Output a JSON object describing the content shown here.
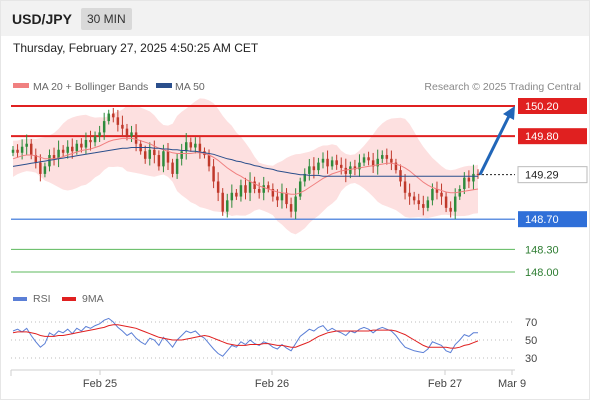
{
  "header": {
    "pair": "USD/JPY",
    "timeframe": "30 MIN",
    "datetime": "Thursday, February 27, 2025 4:50:25 AM CET"
  },
  "colors": {
    "bull_candle": "#2e8b3c",
    "bear_candle": "#c0392b",
    "bollinger_fill": "#fde0e0",
    "ma20": "#f08080",
    "ma50": "#2b4f8c",
    "resistance": "#e02020",
    "support": "#2f6fd8",
    "target": "#5cb85c",
    "arrow": "#2166b8",
    "rsi": "#5b7fd6",
    "rsi_ma": "#e02020"
  },
  "chart_data": [
    {
      "type": "candlestick",
      "title": "USD/JPY",
      "legend": [
        {
          "name": "MA 20 + Bollinger Bands",
          "color": "#f08080"
        },
        {
          "name": "MA 50",
          "color": "#2b4f8c"
        }
      ],
      "credit": "Research © 2025 Trading Central",
      "x_ticks": [
        "Feb 25",
        "Feb 26",
        "Feb 27",
        "Mar 9"
      ],
      "levels": [
        {
          "label": "150.20",
          "value": 150.2,
          "kind": "resistance"
        },
        {
          "label": "149.80",
          "value": 149.8,
          "kind": "resistance"
        },
        {
          "label": "149.29",
          "value": 149.29,
          "kind": "current"
        },
        {
          "label": "148.70",
          "value": 148.7,
          "kind": "support"
        },
        {
          "label": "148.30",
          "value": 148.3,
          "kind": "target"
        },
        {
          "label": "148.00",
          "value": 148.0,
          "kind": "target"
        }
      ],
      "ylim": [
        147.85,
        150.35
      ],
      "forecast_arrow": {
        "from": 149.29,
        "to": 150.2
      },
      "close": [
        149.62,
        149.58,
        149.66,
        149.7,
        149.55,
        149.45,
        149.3,
        149.4,
        149.55,
        149.5,
        149.62,
        149.58,
        149.66,
        149.6,
        149.7,
        149.65,
        149.75,
        149.72,
        149.8,
        149.85,
        150.0,
        150.1,
        150.05,
        149.95,
        149.9,
        149.8,
        149.85,
        149.7,
        149.6,
        149.5,
        149.62,
        149.55,
        149.4,
        149.6,
        149.45,
        149.3,
        149.5,
        149.6,
        149.72,
        149.65,
        149.7,
        149.6,
        149.55,
        149.4,
        149.2,
        149.05,
        148.8,
        148.95,
        149.05,
        149.0,
        149.15,
        149.05,
        149.2,
        149.1,
        149.05,
        149.15,
        149.1,
        149.0,
        148.95,
        149.05,
        148.9,
        148.8,
        149.0,
        149.2,
        149.3,
        149.4,
        149.35,
        149.45,
        149.5,
        149.4,
        149.48,
        149.42,
        149.38,
        149.3,
        149.4,
        149.36,
        149.45,
        149.52,
        149.48,
        149.4,
        149.5,
        149.55,
        149.5,
        149.45,
        149.35,
        149.2,
        149.05,
        149.0,
        148.95,
        148.9,
        148.85,
        148.95,
        149.1,
        149.05,
        149.0,
        148.85,
        148.8,
        149.0,
        149.1,
        149.25,
        149.2,
        149.3,
        149.29
      ],
      "ma20": [
        149.5,
        149.52,
        149.54,
        149.55,
        149.55,
        149.54,
        149.52,
        149.5,
        149.5,
        149.5,
        149.51,
        149.53,
        149.55,
        149.57,
        149.59,
        149.61,
        149.62,
        149.63,
        149.65,
        149.67,
        149.7,
        149.73,
        149.75,
        149.76,
        149.77,
        149.77,
        149.77,
        149.76,
        149.74,
        149.72,
        149.7,
        149.67,
        149.64,
        149.62,
        149.6,
        149.58,
        149.57,
        149.57,
        149.57,
        149.57,
        149.58,
        149.58,
        149.57,
        149.55,
        149.52,
        149.48,
        149.43,
        149.38,
        149.34,
        149.3,
        149.27,
        149.23,
        149.2,
        149.17,
        149.14,
        149.12,
        149.1,
        149.08,
        149.06,
        149.05,
        149.04,
        149.03,
        149.03,
        149.05,
        149.08,
        149.12,
        149.16,
        149.2,
        149.24,
        149.27,
        149.3,
        149.32,
        149.34,
        149.35,
        149.36,
        149.37,
        149.38,
        149.39,
        149.4,
        149.41,
        149.42,
        149.43,
        149.44,
        149.44,
        149.43,
        149.41,
        149.38,
        149.34,
        149.29,
        149.24,
        149.19,
        149.15,
        149.12,
        149.1,
        149.08,
        149.06,
        149.05,
        149.05,
        149.06,
        149.07,
        149.08,
        149.09,
        149.1
      ],
      "ma50": [
        149.4,
        149.41,
        149.42,
        149.43,
        149.44,
        149.45,
        149.46,
        149.47,
        149.48,
        149.49,
        149.5,
        149.51,
        149.52,
        149.53,
        149.54,
        149.55,
        149.56,
        149.57,
        149.58,
        149.59,
        149.6,
        149.61,
        149.62,
        149.63,
        149.64,
        149.64,
        149.65,
        149.65,
        149.65,
        149.65,
        149.65,
        149.64,
        149.64,
        149.63,
        149.63,
        149.62,
        149.62,
        149.61,
        149.61,
        149.6,
        149.6,
        149.59,
        149.58,
        149.57,
        149.56,
        149.54,
        149.52,
        149.5,
        149.49,
        149.47,
        149.46,
        149.44,
        149.43,
        149.41,
        149.4,
        149.38,
        149.37,
        149.36,
        149.34,
        149.33,
        149.32,
        149.31,
        149.3,
        149.29,
        149.29,
        149.28,
        149.28,
        149.28,
        149.27,
        149.27,
        149.27,
        149.27,
        149.27,
        149.27,
        149.27,
        149.27,
        149.27,
        149.27,
        149.27,
        149.27,
        149.27,
        149.27,
        149.27,
        149.27,
        149.27,
        149.27,
        149.27,
        149.27,
        149.27,
        149.27,
        149.27,
        149.27,
        149.27,
        149.27,
        149.27,
        149.27,
        149.27,
        149.27,
        149.27,
        149.27,
        149.27,
        149.27,
        149.27
      ]
    },
    {
      "type": "line",
      "legend": [
        {
          "name": "RSI",
          "color": "#5b7fd6"
        },
        {
          "name": "9MA",
          "color": "#e02020"
        }
      ],
      "y_ticks": [
        "70",
        "50",
        "30"
      ],
      "ylim": [
        20,
        80
      ],
      "rsi": [
        60,
        62,
        59,
        63,
        55,
        48,
        42,
        46,
        58,
        55,
        60,
        58,
        62,
        57,
        63,
        60,
        65,
        63,
        66,
        68,
        72,
        74,
        70,
        64,
        60,
        55,
        58,
        52,
        48,
        45,
        52,
        50,
        44,
        53,
        48,
        42,
        50,
        55,
        60,
        58,
        60,
        55,
        52,
        46,
        40,
        35,
        32,
        38,
        44,
        42,
        48,
        45,
        50,
        46,
        44,
        48,
        46,
        42,
        40,
        45,
        41,
        38,
        46,
        54,
        58,
        62,
        60,
        64,
        66,
        60,
        63,
        60,
        58,
        55,
        60,
        58,
        62,
        64,
        62,
        58,
        62,
        64,
        62,
        60,
        55,
        48,
        42,
        40,
        38,
        37,
        36,
        40,
        48,
        46,
        44,
        38,
        36,
        45,
        50,
        56,
        54,
        58,
        58
      ],
      "rsi_ma": [
        58,
        59,
        59,
        59,
        58,
        57,
        55,
        54,
        54,
        54,
        55,
        55,
        56,
        57,
        58,
        59,
        60,
        61,
        62,
        63,
        64,
        66,
        67,
        67,
        66,
        65,
        64,
        63,
        61,
        59,
        57,
        55,
        53,
        52,
        51,
        50,
        50,
        50,
        51,
        52,
        53,
        54,
        55,
        54,
        52,
        50,
        48,
        46,
        45,
        44,
        44,
        44,
        45,
        45,
        45,
        46,
        46,
        45,
        44,
        44,
        43,
        42,
        42,
        44,
        46,
        48,
        51,
        54,
        56,
        58,
        59,
        60,
        60,
        60,
        60,
        60,
        60,
        60,
        60,
        61,
        61,
        61,
        61,
        61,
        60,
        58,
        56,
        53,
        50,
        47,
        44,
        42,
        42,
        42,
        42,
        42,
        41,
        41,
        42,
        44,
        45,
        47,
        49
      ]
    }
  ]
}
